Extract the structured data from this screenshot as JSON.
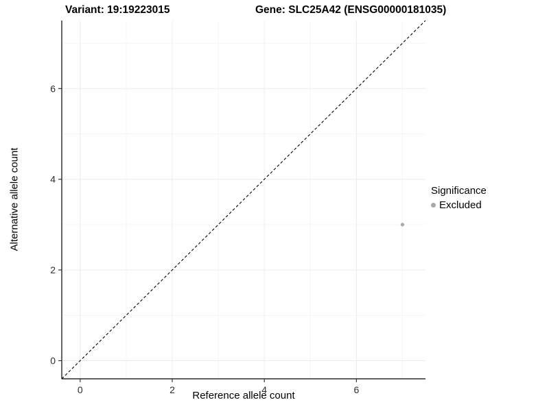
{
  "chart_data": {
    "type": "scatter",
    "titles": {
      "left": "Variant: 19:19223015",
      "right": "Gene: SLC25A42 (ENSG00000181035)"
    },
    "xlabel": "Reference allele count",
    "ylabel": "Alternative allele count",
    "xlim": [
      -0.4,
      7.5
    ],
    "ylim": [
      -0.4,
      7.5
    ],
    "xticks": [
      0,
      2,
      4,
      6
    ],
    "yticks": [
      0,
      2,
      4,
      6
    ],
    "minor_ticks": [
      1,
      3,
      5,
      7
    ],
    "grid": true,
    "identity_line": {
      "style": "dashed",
      "color": "#000000",
      "from": [
        -0.4,
        -0.4
      ],
      "to": [
        7.5,
        7.5
      ]
    },
    "series": [
      {
        "name": "Excluded",
        "color": "#a8a8a8",
        "points": [
          {
            "x": 7,
            "y": 3
          }
        ]
      }
    ],
    "legend": {
      "title": "Significance",
      "position": "right",
      "entries": [
        {
          "label": "Excluded",
          "color": "#a8a8a8"
        }
      ]
    },
    "colors": {
      "axis": "#000000",
      "tick": "#333333",
      "tick_label": "#2e2e2e",
      "grid_major": "#ececec",
      "grid_minor": "#f5f5f5"
    }
  }
}
